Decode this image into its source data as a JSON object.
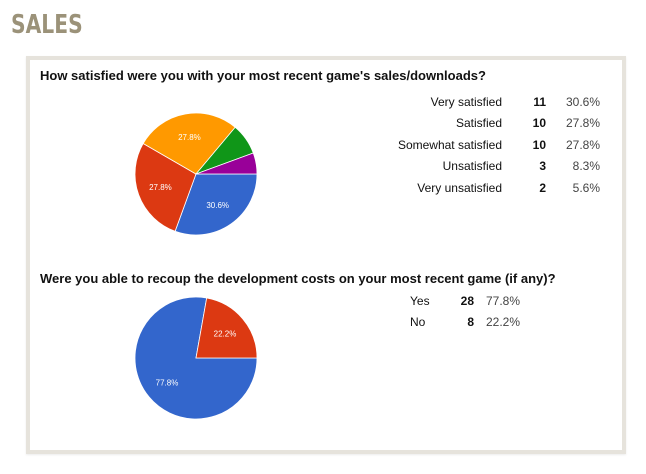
{
  "section_title": "SALES",
  "chart_data": [
    {
      "type": "pie",
      "title": "How satisfied were you with your most recent game's sales/downloads?",
      "slices": [
        {
          "label": "Very satisfied",
          "count": "11",
          "percent": "30.6%",
          "value": 30.6,
          "color": "#3366cc",
          "slice_label": "30.6%"
        },
        {
          "label": "Satisfied",
          "count": "10",
          "percent": "27.8%",
          "value": 27.8,
          "color": "#dc3912",
          "slice_label": "27.8%"
        },
        {
          "label": "Somewhat satisfied",
          "count": "10",
          "percent": "27.8%",
          "value": 27.8,
          "color": "#ff9900",
          "slice_label": "27.8%"
        },
        {
          "label": "Unsatisfied",
          "count": "3",
          "percent": "8.3%",
          "value": 8.3,
          "color": "#109618",
          "slice_label": ""
        },
        {
          "label": "Very unsatisfied",
          "count": "2",
          "percent": "5.6%",
          "value": 5.6,
          "color": "#990099",
          "slice_label": ""
        }
      ]
    },
    {
      "type": "pie",
      "title": "Were you able to recoup the development costs on your most recent game (if any)?",
      "slices": [
        {
          "label": "Yes",
          "count": "28",
          "percent": "77.8%",
          "value": 77.8,
          "color": "#3366cc",
          "slice_label": "77.8%"
        },
        {
          "label": "No",
          "count": "8",
          "percent": "22.2%",
          "value": 22.2,
          "color": "#dc3912",
          "slice_label": "22.2%"
        }
      ]
    }
  ]
}
